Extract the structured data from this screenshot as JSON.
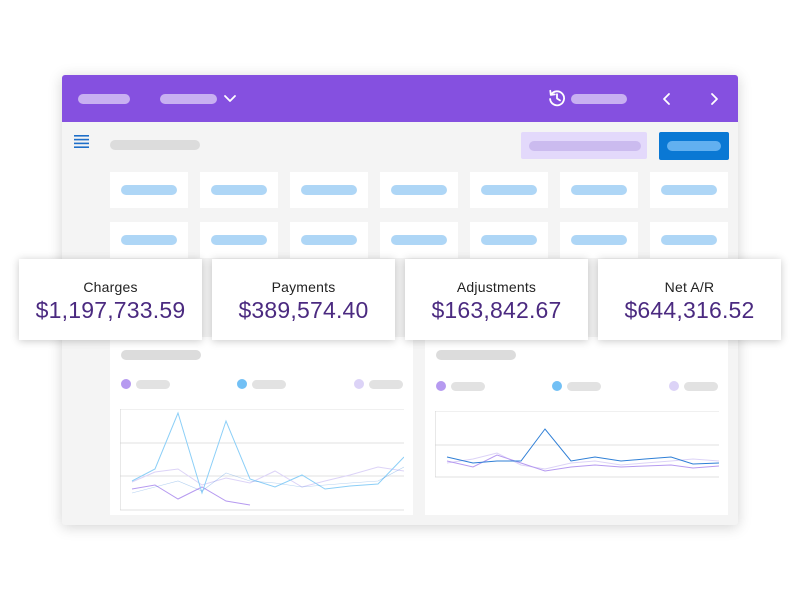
{
  "colors": {
    "header": "#8550e0",
    "primary_button": "#0a78d4",
    "secondary_button": "#e3d9fb",
    "kpi_value": "#4b2a80",
    "series_purple": "#b69af0",
    "series_blue": "#72c0f5",
    "series_lavender": "#dcd3f7",
    "line_light_blue": "#8ccff7",
    "line_dark_blue": "#2f7fd6"
  },
  "icons": {
    "menu": "hamburger-menu-icon",
    "dropdown": "chevron-down-icon",
    "history": "history-icon",
    "prev": "chevron-left-icon",
    "next": "chevron-right-icon"
  },
  "kpis": [
    {
      "label": "Charges",
      "value": "$1,197,733.59"
    },
    {
      "label": "Payments",
      "value": "$389,574.40"
    },
    {
      "label": "Adjustments",
      "value": "$163,842.67"
    },
    {
      "label": "Net A/R",
      "value": "$644,316.52"
    }
  ]
}
